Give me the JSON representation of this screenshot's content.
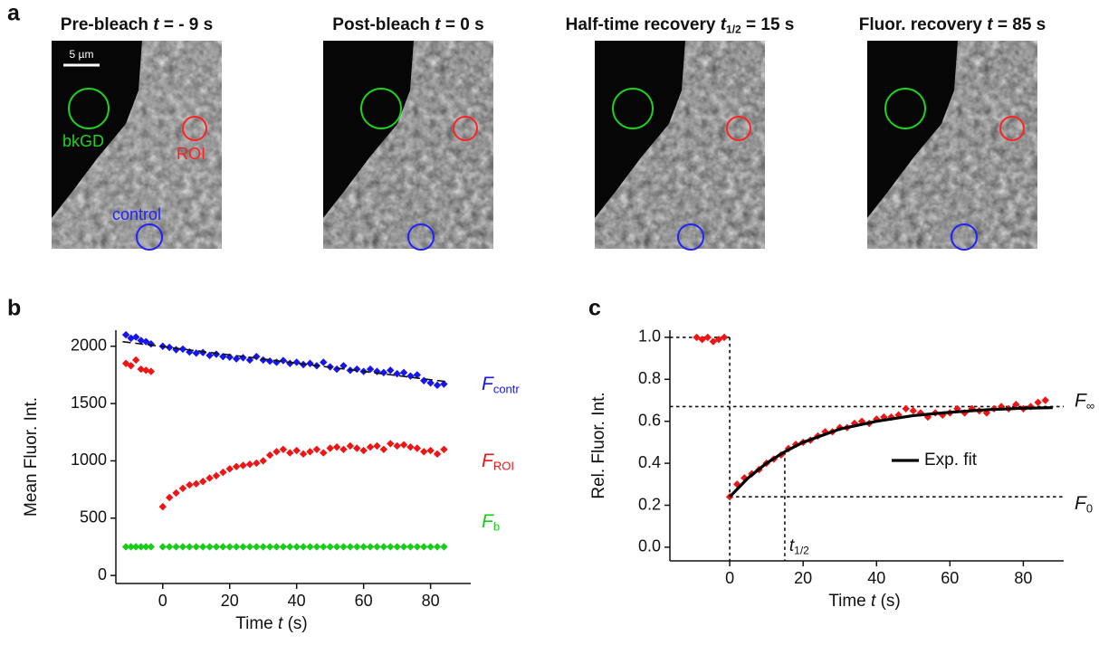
{
  "image_panel": {
    "label": "a",
    "scale_bar": "5 µm",
    "roi_labels": {
      "bkgd": "bkGD",
      "roi": "ROI",
      "control": "control"
    },
    "frames": [
      {
        "title": "Pre-bleach ",
        "var": "t",
        "post": " = - 9 s"
      },
      {
        "title": "Post-bleach ",
        "var": "t",
        "post": " = 0 s"
      },
      {
        "title": "Half-time recovery ",
        "var": "t",
        "sub": "1/2",
        "post": " = 15 s"
      },
      {
        "title": "Fluor. recovery ",
        "var": "t",
        "post": " = 85 s"
      }
    ]
  },
  "chart_data": [
    {
      "panel_label": "b",
      "type": "scatter",
      "xlabel": {
        "pre": "Time ",
        "var": "t",
        "post": " (s)"
      },
      "ylabel": "Mean Fluor. Int.",
      "xlim": [
        -14,
        92
      ],
      "xticks": [
        0,
        20,
        40,
        60,
        80
      ],
      "ylim": [
        -70,
        2140
      ],
      "yticks": [
        0,
        500,
        1000,
        1500,
        2000
      ],
      "x": [
        -11,
        -9.5,
        -8,
        -6.5,
        -5,
        -3.5,
        0,
        2,
        4,
        6,
        8,
        10,
        12,
        14,
        16,
        18,
        20,
        22,
        24,
        26,
        28,
        30,
        32,
        34,
        36,
        38,
        40,
        42,
        44,
        46,
        48,
        50,
        52,
        54,
        56,
        58,
        60,
        62,
        64,
        66,
        68,
        70,
        72,
        74,
        76,
        78,
        80,
        82,
        84
      ],
      "series": [
        {
          "name": "F",
          "name_sub": "contr",
          "color": "#1515ee",
          "values": [
            2100,
            2070,
            2080,
            2050,
            2040,
            2020,
            2000,
            1990,
            1970,
            1975,
            1950,
            1940,
            1945,
            1920,
            1930,
            1910,
            1905,
            1890,
            1900,
            1880,
            1910,
            1880,
            1870,
            1860,
            1875,
            1850,
            1860,
            1840,
            1850,
            1830,
            1860,
            1820,
            1800,
            1830,
            1790,
            1800,
            1780,
            1800,
            1780,
            1770,
            1790,
            1760,
            1770,
            1740,
            1750,
            1700,
            1680,
            1660,
            1670
          ]
        },
        {
          "name": "F",
          "name_sub": "ROI",
          "color": "#ee1515",
          "values": [
            1850,
            1830,
            1880,
            1800,
            1790,
            1780,
            600,
            680,
            720,
            760,
            790,
            800,
            820,
            850,
            870,
            900,
            930,
            950,
            960,
            970,
            980,
            1000,
            1050,
            1080,
            1100,
            1070,
            1090,
            1060,
            1080,
            1100,
            1070,
            1110,
            1120,
            1100,
            1130,
            1110,
            1090,
            1120,
            1130,
            1100,
            1150,
            1130,
            1140,
            1120,
            1110,
            1080,
            1090,
            1060,
            1100
          ]
        },
        {
          "name": "F",
          "name_sub": "b",
          "color": "#19cc19",
          "values": [
            250,
            250,
            250,
            250,
            250,
            250,
            250,
            250,
            250,
            250,
            250,
            250,
            250,
            250,
            250,
            250,
            250,
            250,
            250,
            250,
            250,
            250,
            250,
            250,
            250,
            250,
            250,
            250,
            250,
            250,
            250,
            250,
            250,
            250,
            250,
            250,
            250,
            250,
            250,
            250,
            250,
            250,
            250,
            250,
            250,
            250,
            250,
            250,
            250
          ]
        }
      ],
      "fit": {
        "x": [
          -12,
          85
        ],
        "values": [
          2040,
          1690
        ],
        "color": "#111111",
        "dashed": true
      }
    },
    {
      "panel_label": "c",
      "type": "scatter",
      "xlabel": {
        "pre": "Time ",
        "var": "t",
        "post": " (s)"
      },
      "ylabel": "Rel. Fluor. Int.",
      "xlim": [
        -16.3,
        91
      ],
      "xticks": [
        0,
        20,
        40,
        60,
        80
      ],
      "ylim": [
        -0.065,
        1.034
      ],
      "yticks": [
        {
          "value": 0,
          "label": "0.0"
        },
        0.2,
        0.4,
        0.6,
        0.8,
        {
          "value": 1,
          "label": "1.0"
        }
      ],
      "x": [
        -9,
        -7.5,
        -6,
        -4.5,
        -3,
        -1.5,
        0,
        2,
        4,
        6,
        8,
        10,
        12,
        14,
        16,
        18,
        20,
        22,
        24,
        26,
        28,
        30,
        32,
        34,
        36,
        38,
        40,
        42,
        44,
        46,
        48,
        50,
        52,
        54,
        56,
        58,
        60,
        62,
        64,
        66,
        68,
        70,
        72,
        74,
        76,
        78,
        80,
        82,
        84,
        86
      ],
      "series": [
        {
          "color": "#ee1515",
          "values": [
            1.0,
            0.99,
            1.0,
            0.98,
            0.99,
            1.0,
            0.24,
            0.3,
            0.33,
            0.35,
            0.37,
            0.4,
            0.42,
            0.44,
            0.47,
            0.49,
            0.5,
            0.51,
            0.53,
            0.55,
            0.55,
            0.57,
            0.57,
            0.59,
            0.6,
            0.59,
            0.61,
            0.62,
            0.62,
            0.63,
            0.66,
            0.65,
            0.64,
            0.62,
            0.64,
            0.63,
            0.64,
            0.66,
            0.64,
            0.66,
            0.65,
            0.64,
            0.66,
            0.67,
            0.66,
            0.68,
            0.66,
            0.67,
            0.69,
            0.7
          ]
        }
      ],
      "fit": {
        "name": "Exp. fit",
        "x": [
          0,
          5,
          10,
          15,
          20,
          30,
          40,
          50,
          60,
          70,
          80,
          88
        ],
        "values": [
          0.24,
          0.33,
          0.4,
          0.455,
          0.5,
          0.563,
          0.6,
          0.627,
          0.643,
          0.655,
          0.662,
          0.665
        ],
        "color": "#000000",
        "dashed": false
      },
      "ref_lines": {
        "pre_level": 1.0,
        "bleach_time": 0,
        "f_inf": 0.67,
        "f0": 0.24,
        "t_half": 15,
        "t_half_level": 0.455
      },
      "annotations": [
        {
          "name": "F",
          "sub": "∞"
        },
        {
          "name": "F",
          "sub": "0"
        },
        {
          "name": "t",
          "sub": "1/2"
        }
      ]
    }
  ]
}
